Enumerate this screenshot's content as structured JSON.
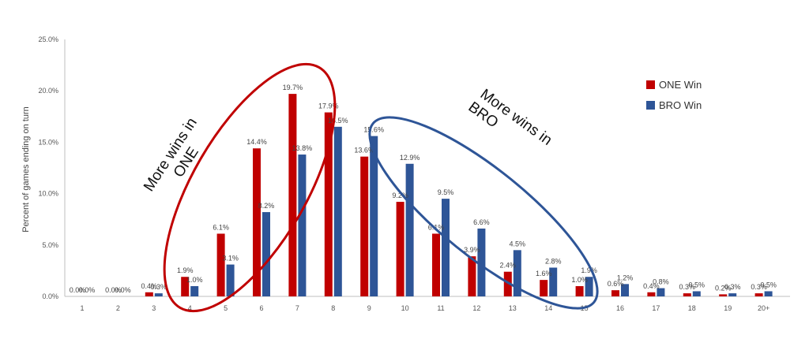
{
  "chart_data": {
    "type": "bar",
    "ylabel": "Percent of games ending on turn",
    "xlabel": "",
    "ylim": [
      0,
      25
    ],
    "yticks": [
      "0.0%",
      "5.0%",
      "10.0%",
      "15.0%",
      "20.0%",
      "25.0%"
    ],
    "categories": [
      "1",
      "2",
      "3",
      "4",
      "5",
      "6",
      "7",
      "8",
      "9",
      "10",
      "11",
      "12",
      "13",
      "14",
      "15",
      "16",
      "17",
      "18",
      "19",
      "20+"
    ],
    "series": [
      {
        "name": "ONE Win",
        "color": "#c00000",
        "values": [
          0.0,
          0.0,
          0.4,
          1.9,
          6.1,
          14.4,
          19.7,
          17.9,
          13.6,
          9.2,
          6.1,
          3.9,
          2.4,
          1.6,
          1.0,
          0.6,
          0.4,
          0.3,
          0.2,
          0.3
        ],
        "labels": [
          "0.0%",
          "0.0%",
          "0.4%",
          "1.9%",
          "6.1%",
          "14.4%",
          "19.7%",
          "17.9%",
          "13.6%",
          "9.2%",
          "6.1%",
          "3.9%",
          "2.4%",
          "1.6%",
          "1.0%",
          "0.6%",
          "0.4%",
          "0.3%",
          "0.2%",
          "0.3%"
        ]
      },
      {
        "name": "BRO Win",
        "color": "#2e5597",
        "values": [
          0.0,
          0.0,
          0.3,
          1.0,
          3.1,
          8.2,
          13.8,
          16.5,
          15.6,
          12.9,
          9.5,
          6.6,
          4.5,
          2.8,
          1.9,
          1.2,
          0.8,
          0.5,
          0.3,
          0.5
        ],
        "labels": [
          "0.0%",
          "0.0%",
          "0.3%",
          "1.0%",
          "3.1%",
          "8.2%",
          "13.8%",
          "16.5%",
          "15.6%",
          "12.9%",
          "9.5%",
          "6.6%",
          "4.5%",
          "2.8%",
          "1.9%",
          "1.2%",
          "0.8%",
          "0.5%",
          "0.3%",
          "0.5%"
        ]
      }
    ],
    "legend": {
      "position": "right"
    },
    "grid": false,
    "annotations": [
      {
        "text_line1": "More wins in",
        "text_line2": "ONE",
        "color": "#c00000"
      },
      {
        "text_line1": "More wins in",
        "text_line2": "BRO",
        "color": "#2e5597"
      }
    ]
  }
}
